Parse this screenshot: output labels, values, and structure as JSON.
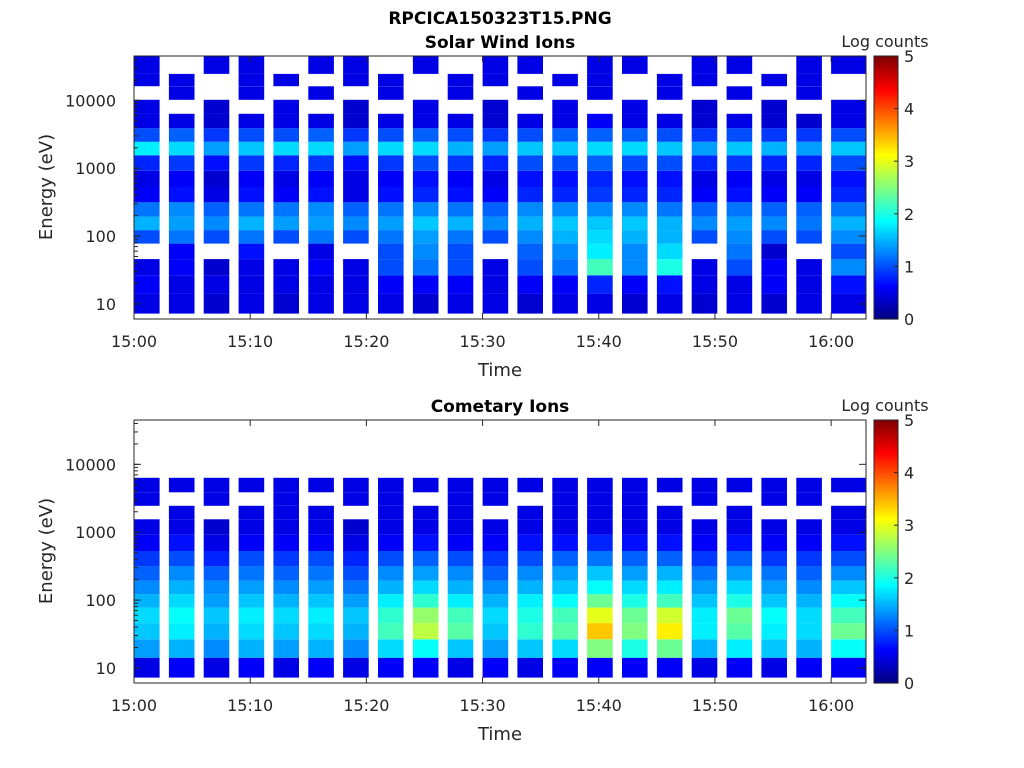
{
  "figure": {
    "title": "RPCICA150323T15.PNG"
  },
  "colors": {
    "colormap": "jet",
    "axis": "#262626",
    "background": "#ffffff"
  },
  "chart_data": [
    {
      "type": "heatmap",
      "title": "Solar Wind Ions",
      "xlabel": "Time",
      "ylabel": "Energy (eV)",
      "yscale": "log",
      "ylim": [
        6,
        45000
      ],
      "xlim": [
        "15:00",
        "16:03"
      ],
      "xticks": [
        "15:00",
        "15:10",
        "15:20",
        "15:30",
        "15:40",
        "15:50",
        "16:00"
      ],
      "yticks": [
        "10",
        "100",
        "1000",
        "10000"
      ],
      "colorbar": {
        "label": "Log counts",
        "min": 0,
        "max": 5,
        "ticks": [
          "0",
          "1",
          "2",
          "3",
          "4",
          "5"
        ]
      },
      "time_columns": [
        "15:00",
        "15:03",
        "15:06",
        "15:09",
        "15:12",
        "15:15",
        "15:18",
        "15:21",
        "15:24",
        "15:27",
        "15:30",
        "15:33",
        "15:36",
        "15:39",
        "15:42",
        "15:45",
        "15:48",
        "15:51",
        "15:54",
        "15:57",
        "16:00"
      ],
      "energy_bins_eV": [
        10,
        20,
        35,
        60,
        100,
        150,
        250,
        400,
        700,
        1200,
        2000,
        3000,
        5000,
        8000,
        13000,
        20000,
        30000
      ],
      "z": [
        [
          0.5,
          0.5,
          0.4,
          0.5,
          0.4,
          0.5,
          0.5,
          0.5,
          0.4,
          0.5,
          0.5,
          0.4,
          0.5,
          0.5,
          0.4,
          0.5,
          0.4,
          0.5,
          0.4,
          0.5,
          0.5
        ],
        [
          0.6,
          0.5,
          0.5,
          0.5,
          0.5,
          0.5,
          0.5,
          0.6,
          0.6,
          0.6,
          0.5,
          0.6,
          0.6,
          0.8,
          0.6,
          0.7,
          0.5,
          0.5,
          0.6,
          0.5,
          0.7
        ],
        [
          0.5,
          0.6,
          0.4,
          0.5,
          0.5,
          0.6,
          0.5,
          1.0,
          1.2,
          1.0,
          0.5,
          1.0,
          1.2,
          2.2,
          1.3,
          2.0,
          0.5,
          1.0,
          0.6,
          0.5,
          1.3
        ],
        [
          0,
          0.6,
          0,
          0.7,
          0,
          0.5,
          0,
          1.0,
          1.3,
          1.0,
          0,
          1.1,
          1.3,
          1.8,
          1.3,
          1.7,
          0,
          1.2,
          0.4,
          0,
          1.0
        ],
        [
          1.0,
          1.2,
          1.0,
          1.2,
          1.0,
          1.2,
          1.0,
          1.2,
          1.4,
          1.2,
          1.0,
          1.3,
          1.5,
          1.7,
          1.5,
          1.5,
          1.0,
          1.3,
          1.0,
          1.0,
          1.3
        ],
        [
          1.5,
          1.4,
          1.3,
          1.5,
          1.4,
          1.4,
          1.3,
          1.4,
          1.6,
          1.5,
          1.3,
          1.5,
          1.6,
          1.6,
          1.6,
          1.5,
          1.3,
          1.4,
          1.3,
          1.2,
          1.5
        ],
        [
          1.2,
          1.3,
          1.1,
          1.2,
          1.2,
          1.3,
          1.1,
          1.2,
          1.3,
          1.2,
          1.1,
          1.3,
          1.3,
          1.3,
          1.3,
          1.2,
          1.1,
          1.2,
          1.1,
          1.1,
          1.2
        ],
        [
          0.6,
          0.7,
          0.5,
          0.7,
          0.6,
          0.7,
          0.5,
          0.7,
          0.8,
          0.7,
          0.6,
          0.8,
          0.8,
          0.9,
          0.8,
          0.8,
          0.6,
          0.7,
          0.6,
          0.6,
          0.8
        ],
        [
          0.5,
          0.6,
          0.4,
          0.6,
          0.5,
          0.6,
          0.5,
          0.6,
          0.7,
          0.6,
          0.5,
          0.7,
          0.7,
          0.8,
          0.7,
          0.7,
          0.5,
          0.6,
          0.5,
          0.5,
          0.7
        ],
        [
          0.8,
          0.9,
          0.7,
          0.9,
          0.8,
          0.9,
          0.7,
          0.9,
          1.0,
          0.9,
          0.8,
          1.0,
          1.0,
          1.1,
          1.0,
          1.0,
          0.8,
          0.9,
          0.8,
          0.8,
          1.0
        ],
        [
          1.8,
          1.7,
          1.4,
          1.6,
          1.7,
          1.7,
          1.4,
          1.7,
          1.7,
          1.5,
          1.4,
          1.6,
          1.6,
          1.7,
          1.7,
          1.6,
          1.4,
          1.6,
          1.5,
          1.4,
          1.6
        ],
        [
          1.0,
          1.1,
          0.9,
          1.0,
          1.0,
          1.1,
          0.9,
          1.0,
          1.1,
          1.0,
          0.9,
          1.0,
          1.1,
          1.1,
          1.1,
          1.0,
          0.9,
          1.0,
          0.9,
          0.9,
          1.0
        ],
        [
          0.5,
          0.5,
          0.4,
          0.5,
          0.5,
          0.5,
          0.4,
          0.5,
          0.5,
          0.5,
          0.4,
          0.5,
          0.5,
          0.6,
          0.5,
          0.5,
          0.4,
          0.5,
          0.4,
          0.4,
          0.5
        ],
        [
          0.5,
          0,
          0.4,
          0,
          0.5,
          0,
          0.4,
          0,
          0.5,
          0,
          0.4,
          0,
          0.5,
          0,
          0.5,
          0,
          0.4,
          0,
          0.4,
          0,
          0.5
        ],
        [
          0,
          0.5,
          0,
          0.5,
          0,
          0.5,
          0,
          0.5,
          0,
          0.5,
          0,
          0.5,
          0,
          0.5,
          0,
          0.5,
          0,
          0.5,
          0,
          0.5,
          0
        ],
        [
          0.5,
          0.5,
          0,
          0.5,
          0.5,
          0,
          0.5,
          0.5,
          0,
          0.5,
          0.5,
          0,
          0.5,
          0.5,
          0,
          0.5,
          0.5,
          0,
          0.5,
          0.5,
          0
        ],
        [
          0.5,
          0,
          0.5,
          0.5,
          0,
          0.5,
          0.5,
          0,
          0.5,
          0,
          0.5,
          0.5,
          0,
          0.5,
          0.5,
          0,
          0.5,
          0.5,
          0,
          0.5,
          0.5
        ]
      ]
    },
    {
      "type": "heatmap",
      "title": "Cometary Ions",
      "xlabel": "Time",
      "ylabel": "Energy (eV)",
      "yscale": "log",
      "ylim": [
        6,
        45000
      ],
      "xlim": [
        "15:00",
        "16:03"
      ],
      "xticks": [
        "15:00",
        "15:10",
        "15:20",
        "15:30",
        "15:40",
        "15:50",
        "16:00"
      ],
      "yticks": [
        "10",
        "100",
        "1000",
        "10000"
      ],
      "colorbar": {
        "label": "Log counts",
        "min": 0,
        "max": 5,
        "ticks": [
          "0",
          "1",
          "2",
          "3",
          "4",
          "5"
        ]
      },
      "time_columns": [
        "15:00",
        "15:03",
        "15:06",
        "15:09",
        "15:12",
        "15:15",
        "15:18",
        "15:21",
        "15:24",
        "15:27",
        "15:30",
        "15:33",
        "15:36",
        "15:39",
        "15:42",
        "15:45",
        "15:48",
        "15:51",
        "15:54",
        "15:57",
        "16:00"
      ],
      "energy_bins_eV": [
        10,
        20,
        35,
        60,
        100,
        150,
        250,
        400,
        700,
        1200,
        2000,
        3000,
        5000,
        8000,
        13000,
        20000,
        30000
      ],
      "z": [
        [
          0.5,
          0.6,
          0.5,
          0.6,
          0.5,
          0.6,
          0.5,
          0.6,
          0.6,
          0.5,
          0.6,
          0.5,
          0.6,
          0.6,
          0.6,
          0.6,
          0.5,
          0.6,
          0.5,
          0.6,
          0.6
        ],
        [
          1.4,
          1.5,
          1.3,
          1.5,
          1.4,
          1.5,
          1.3,
          1.7,
          1.9,
          1.6,
          1.4,
          1.6,
          1.7,
          2.5,
          2.0,
          2.4,
          1.5,
          1.8,
          1.6,
          1.5,
          1.9
        ],
        [
          1.6,
          1.8,
          1.5,
          1.7,
          1.6,
          1.7,
          1.5,
          2.2,
          2.8,
          2.3,
          1.6,
          2.1,
          2.3,
          3.4,
          2.5,
          3.2,
          1.8,
          2.3,
          1.8,
          1.7,
          2.4
        ],
        [
          1.7,
          1.9,
          1.6,
          1.8,
          1.7,
          1.8,
          1.6,
          2.1,
          2.6,
          2.2,
          1.7,
          2.0,
          2.2,
          3.0,
          2.4,
          2.9,
          1.8,
          2.4,
          1.9,
          1.7,
          2.2
        ],
        [
          1.5,
          1.7,
          1.4,
          1.6,
          1.5,
          1.6,
          1.4,
          1.8,
          2.1,
          1.8,
          1.5,
          1.8,
          1.9,
          2.4,
          2.0,
          2.2,
          1.6,
          2.0,
          1.6,
          1.5,
          1.9
        ],
        [
          1.3,
          1.5,
          1.3,
          1.4,
          1.3,
          1.4,
          1.2,
          1.5,
          1.7,
          1.5,
          1.3,
          1.5,
          1.6,
          1.9,
          1.7,
          1.8,
          1.4,
          1.7,
          1.4,
          1.3,
          1.6
        ],
        [
          1.1,
          1.3,
          1.1,
          1.2,
          1.1,
          1.2,
          1.0,
          1.3,
          1.4,
          1.3,
          1.1,
          1.3,
          1.4,
          1.6,
          1.4,
          1.5,
          1.2,
          1.4,
          1.2,
          1.1,
          1.3
        ],
        [
          0.9,
          1.0,
          0.8,
          1.0,
          0.9,
          1.0,
          0.8,
          1.0,
          1.1,
          1.0,
          0.9,
          1.0,
          1.1,
          1.2,
          1.1,
          1.1,
          0.9,
          1.1,
          0.9,
          0.9,
          1.0
        ],
        [
          0.6,
          0.7,
          0.5,
          0.6,
          0.6,
          0.6,
          0.5,
          0.6,
          0.7,
          0.6,
          0.6,
          0.7,
          0.7,
          0.8,
          0.7,
          0.7,
          0.6,
          0.7,
          0.6,
          0.6,
          0.7
        ],
        [
          0.5,
          0.5,
          0.4,
          0.5,
          0.5,
          0.5,
          0.4,
          0.5,
          0.5,
          0.5,
          0.5,
          0.5,
          0.5,
          0.5,
          0.5,
          0.5,
          0.5,
          0.5,
          0.5,
          0.5,
          0.5
        ],
        [
          0,
          0.5,
          0,
          0.5,
          0.5,
          0.5,
          0,
          0.5,
          0.5,
          0.5,
          0,
          0.5,
          0.5,
          0.5,
          0.5,
          0.5,
          0,
          0.5,
          0,
          0,
          0.5
        ],
        [
          0.5,
          0,
          0.5,
          0,
          0.5,
          0,
          0.5,
          0.5,
          0,
          0.5,
          0.5,
          0,
          0.5,
          0.5,
          0.5,
          0,
          0.5,
          0,
          0.5,
          0.5,
          0
        ],
        [
          0.5,
          0.5,
          0.5,
          0.5,
          0.5,
          0.5,
          0.5,
          0.5,
          0.5,
          0.5,
          0.5,
          0.5,
          0.5,
          0.5,
          0.5,
          0.5,
          0.5,
          0.5,
          0.5,
          0.5,
          0.5
        ],
        [
          0,
          0,
          0,
          0,
          0,
          0,
          0,
          0,
          0,
          0,
          0,
          0,
          0,
          0,
          0,
          0,
          0,
          0,
          0,
          0,
          0
        ],
        [
          0,
          0,
          0,
          0,
          0,
          0,
          0,
          0,
          0,
          0,
          0,
          0,
          0,
          0,
          0,
          0,
          0,
          0,
          0,
          0,
          0
        ],
        [
          0,
          0,
          0,
          0,
          0,
          0,
          0,
          0,
          0,
          0,
          0,
          0,
          0,
          0,
          0,
          0,
          0,
          0,
          0,
          0,
          0
        ],
        [
          0,
          0,
          0,
          0,
          0,
          0,
          0,
          0,
          0,
          0,
          0,
          0,
          0,
          0,
          0,
          0,
          0,
          0,
          0,
          0,
          0
        ]
      ]
    }
  ]
}
